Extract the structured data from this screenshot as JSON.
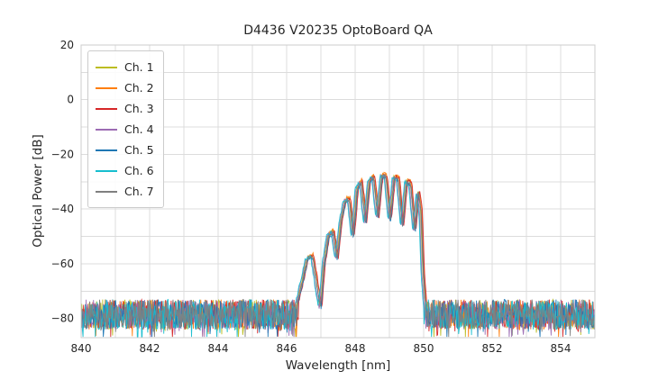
{
  "chart_data": {
    "type": "line",
    "title": "D4436 V20235 OptoBoard QA",
    "xlabel": "Wavelength [nm]",
    "ylabel": "Optical Power [dB]",
    "xlim": [
      840,
      855
    ],
    "ylim": [
      -87,
      20
    ],
    "xticks": [
      840,
      842,
      844,
      846,
      848,
      850,
      852,
      854
    ],
    "yticks": [
      20,
      0,
      -20,
      -40,
      -60,
      -80
    ],
    "x_grid_step": 1,
    "y_grid_step": 10,
    "grid_color": "#dcdcdc",
    "spine_color": "#cccccc",
    "tick_color": "#262626",
    "legend_position": "upper left",
    "signal_band_nm": [
      846.5,
      850.0
    ],
    "peak_power_db": -28,
    "noise_floor_db": -78.5,
    "noise_amplitude_db": 5.5,
    "envelope_db": [
      [
        846.3,
        -74
      ],
      [
        846.45,
        -66
      ],
      [
        846.6,
        -57.5
      ],
      [
        846.75,
        -57
      ],
      [
        846.88,
        -68
      ],
      [
        846.98,
        -76
      ],
      [
        847.08,
        -60
      ],
      [
        847.22,
        -49
      ],
      [
        847.35,
        -48
      ],
      [
        847.46,
        -58
      ],
      [
        847.58,
        -44
      ],
      [
        847.7,
        -36.5
      ],
      [
        847.82,
        -36
      ],
      [
        847.93,
        -50
      ],
      [
        848.05,
        -32
      ],
      [
        848.17,
        -29.5
      ],
      [
        848.29,
        -45
      ],
      [
        848.41,
        -29
      ],
      [
        848.53,
        -28
      ],
      [
        848.65,
        -43
      ],
      [
        848.77,
        -27.5
      ],
      [
        848.89,
        -27.5
      ],
      [
        849.01,
        -44
      ],
      [
        849.13,
        -28
      ],
      [
        849.25,
        -28.5
      ],
      [
        849.37,
        -46
      ],
      [
        849.49,
        -29.5
      ],
      [
        849.61,
        -30.5
      ],
      [
        849.73,
        -48
      ],
      [
        849.83,
        -33
      ],
      [
        849.91,
        -40
      ],
      [
        849.97,
        -62
      ],
      [
        850.05,
        -76
      ]
    ],
    "series": [
      {
        "name": "Ch. 1",
        "color": "#bcbd22",
        "x_offset": 0.0,
        "y_offset": 0,
        "seed": 11
      },
      {
        "name": "Ch. 2",
        "color": "#ff7f0e",
        "x_offset": 0.03,
        "y_offset": 0.5,
        "seed": 22
      },
      {
        "name": "Ch. 3",
        "color": "#d62728",
        "x_offset": 0.05,
        "y_offset": 0,
        "seed": 33
      },
      {
        "name": "Ch. 4",
        "color": "#9c6bb3",
        "x_offset": -0.03,
        "y_offset": -0.5,
        "seed": 44
      },
      {
        "name": "Ch. 5",
        "color": "#1f77b4",
        "x_offset": 0.02,
        "y_offset": -1,
        "seed": 55
      },
      {
        "name": "Ch. 6",
        "color": "#17becf",
        "x_offset": -0.05,
        "y_offset": -0.5,
        "seed": 66
      },
      {
        "name": "Ch. 7",
        "color": "#7f7f7f",
        "x_offset": 0.01,
        "y_offset": -0.5,
        "seed": 77
      }
    ]
  }
}
